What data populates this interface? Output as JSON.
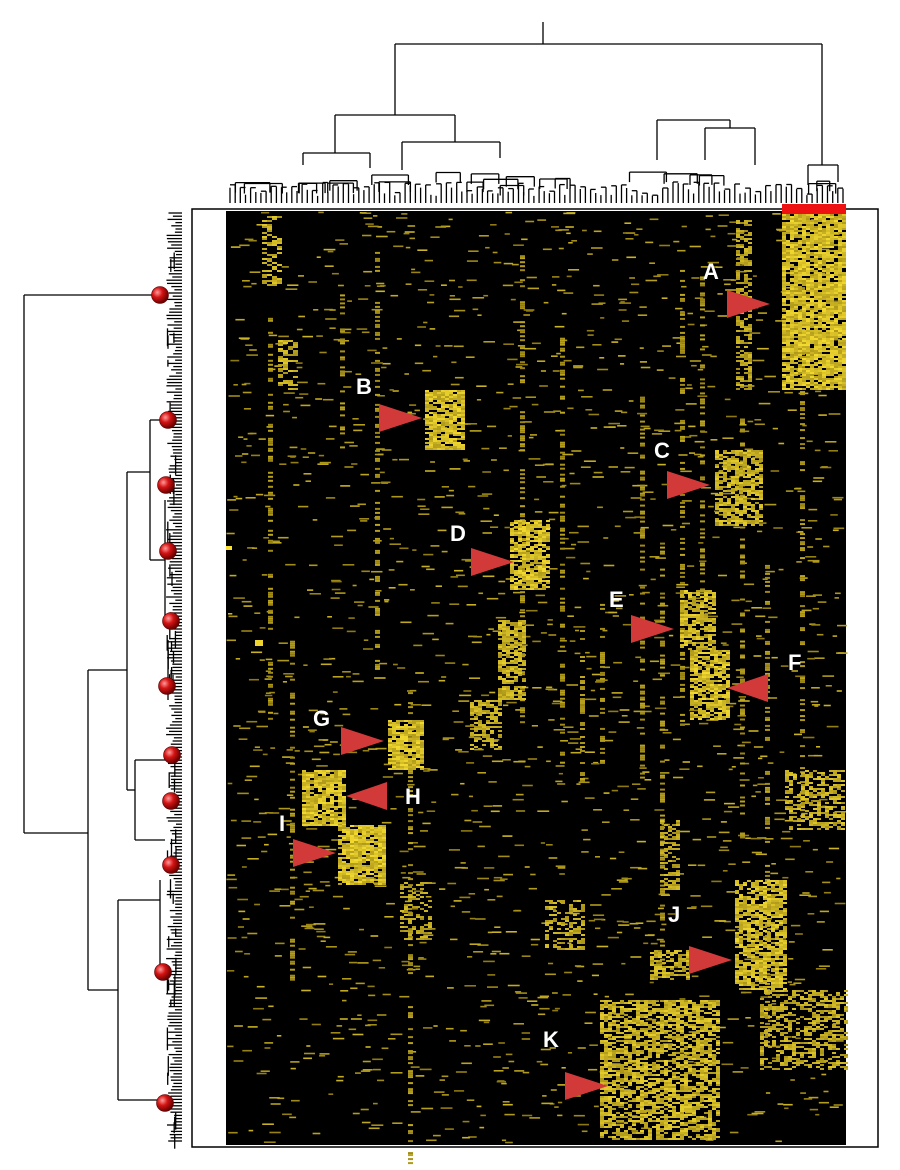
{
  "figure": {
    "cluster_labels": [
      {
        "id": "A",
        "text": "A",
        "arrow_dir": "right"
      },
      {
        "id": "B",
        "text": "B",
        "arrow_dir": "right"
      },
      {
        "id": "C",
        "text": "C",
        "arrow_dir": "right"
      },
      {
        "id": "D",
        "text": "D",
        "arrow_dir": "right"
      },
      {
        "id": "E",
        "text": "E",
        "arrow_dir": "right"
      },
      {
        "id": "F",
        "text": "F",
        "arrow_dir": "left"
      },
      {
        "id": "G",
        "text": "G",
        "arrow_dir": "right"
      },
      {
        "id": "H",
        "text": "H",
        "arrow_dir": "left"
      },
      {
        "id": "I",
        "text": "I",
        "arrow_dir": "right"
      },
      {
        "id": "J",
        "text": "J",
        "arrow_dir": "right"
      },
      {
        "id": "K",
        "text": "K",
        "arrow_dir": "right"
      }
    ],
    "colors": {
      "heatmap_background": "#000000",
      "expression_high": "#f0e030",
      "arrow": "#d23a3a",
      "highlight_bar": "#ee1111",
      "node_marker": "#cc0000",
      "dendrogram_line": "#000000",
      "frame": "#000000"
    },
    "left_dendrogram_node_markers": 11
  }
}
